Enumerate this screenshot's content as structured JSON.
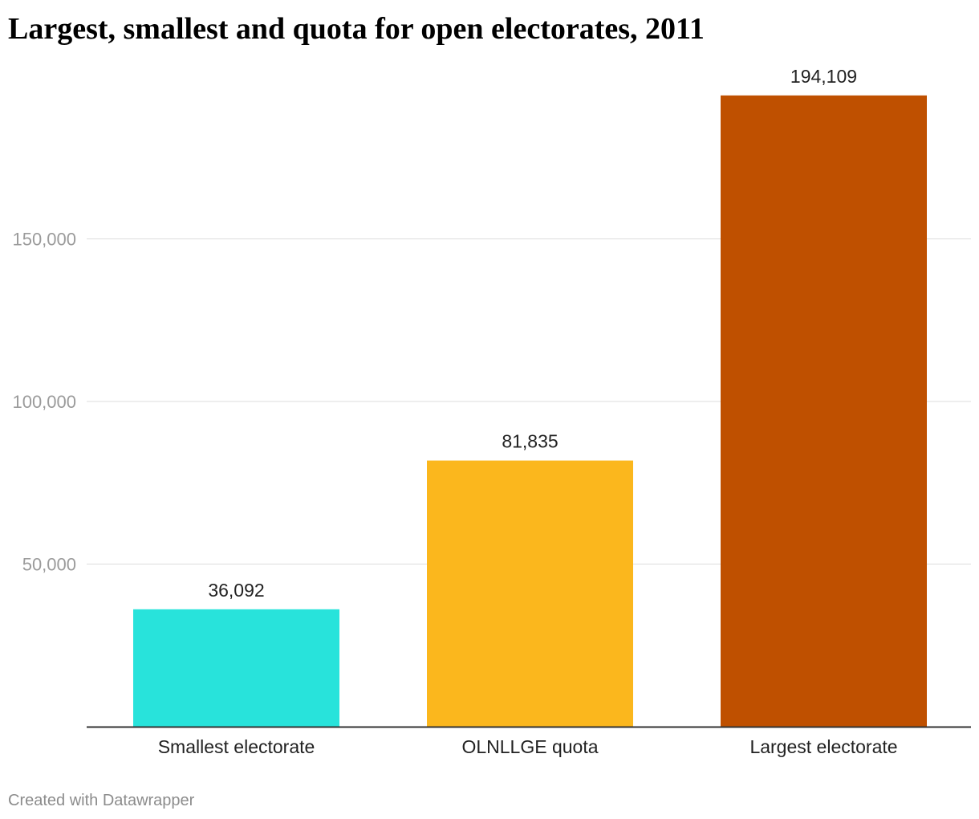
{
  "chart_data": {
    "type": "bar",
    "title": "Largest, smallest and quota for open electorates, 2011",
    "categories": [
      "Smallest electorate",
      "OLNLLGE quota",
      "Largest electorate"
    ],
    "values": [
      36092,
      81835,
      194109
    ],
    "value_labels": [
      "36,092",
      "81,835",
      "194,109"
    ],
    "colors": [
      "#28e3db",
      "#fbb71d",
      "#bf5000"
    ],
    "y_ticks": [
      50000,
      100000,
      150000
    ],
    "y_tick_labels": [
      "50,000",
      "100,000",
      "150,000"
    ],
    "ylim": [
      0,
      200000
    ],
    "grid": true,
    "xlabel": "",
    "ylabel": ""
  },
  "footer": {
    "credit": "Created with Datawrapper"
  }
}
